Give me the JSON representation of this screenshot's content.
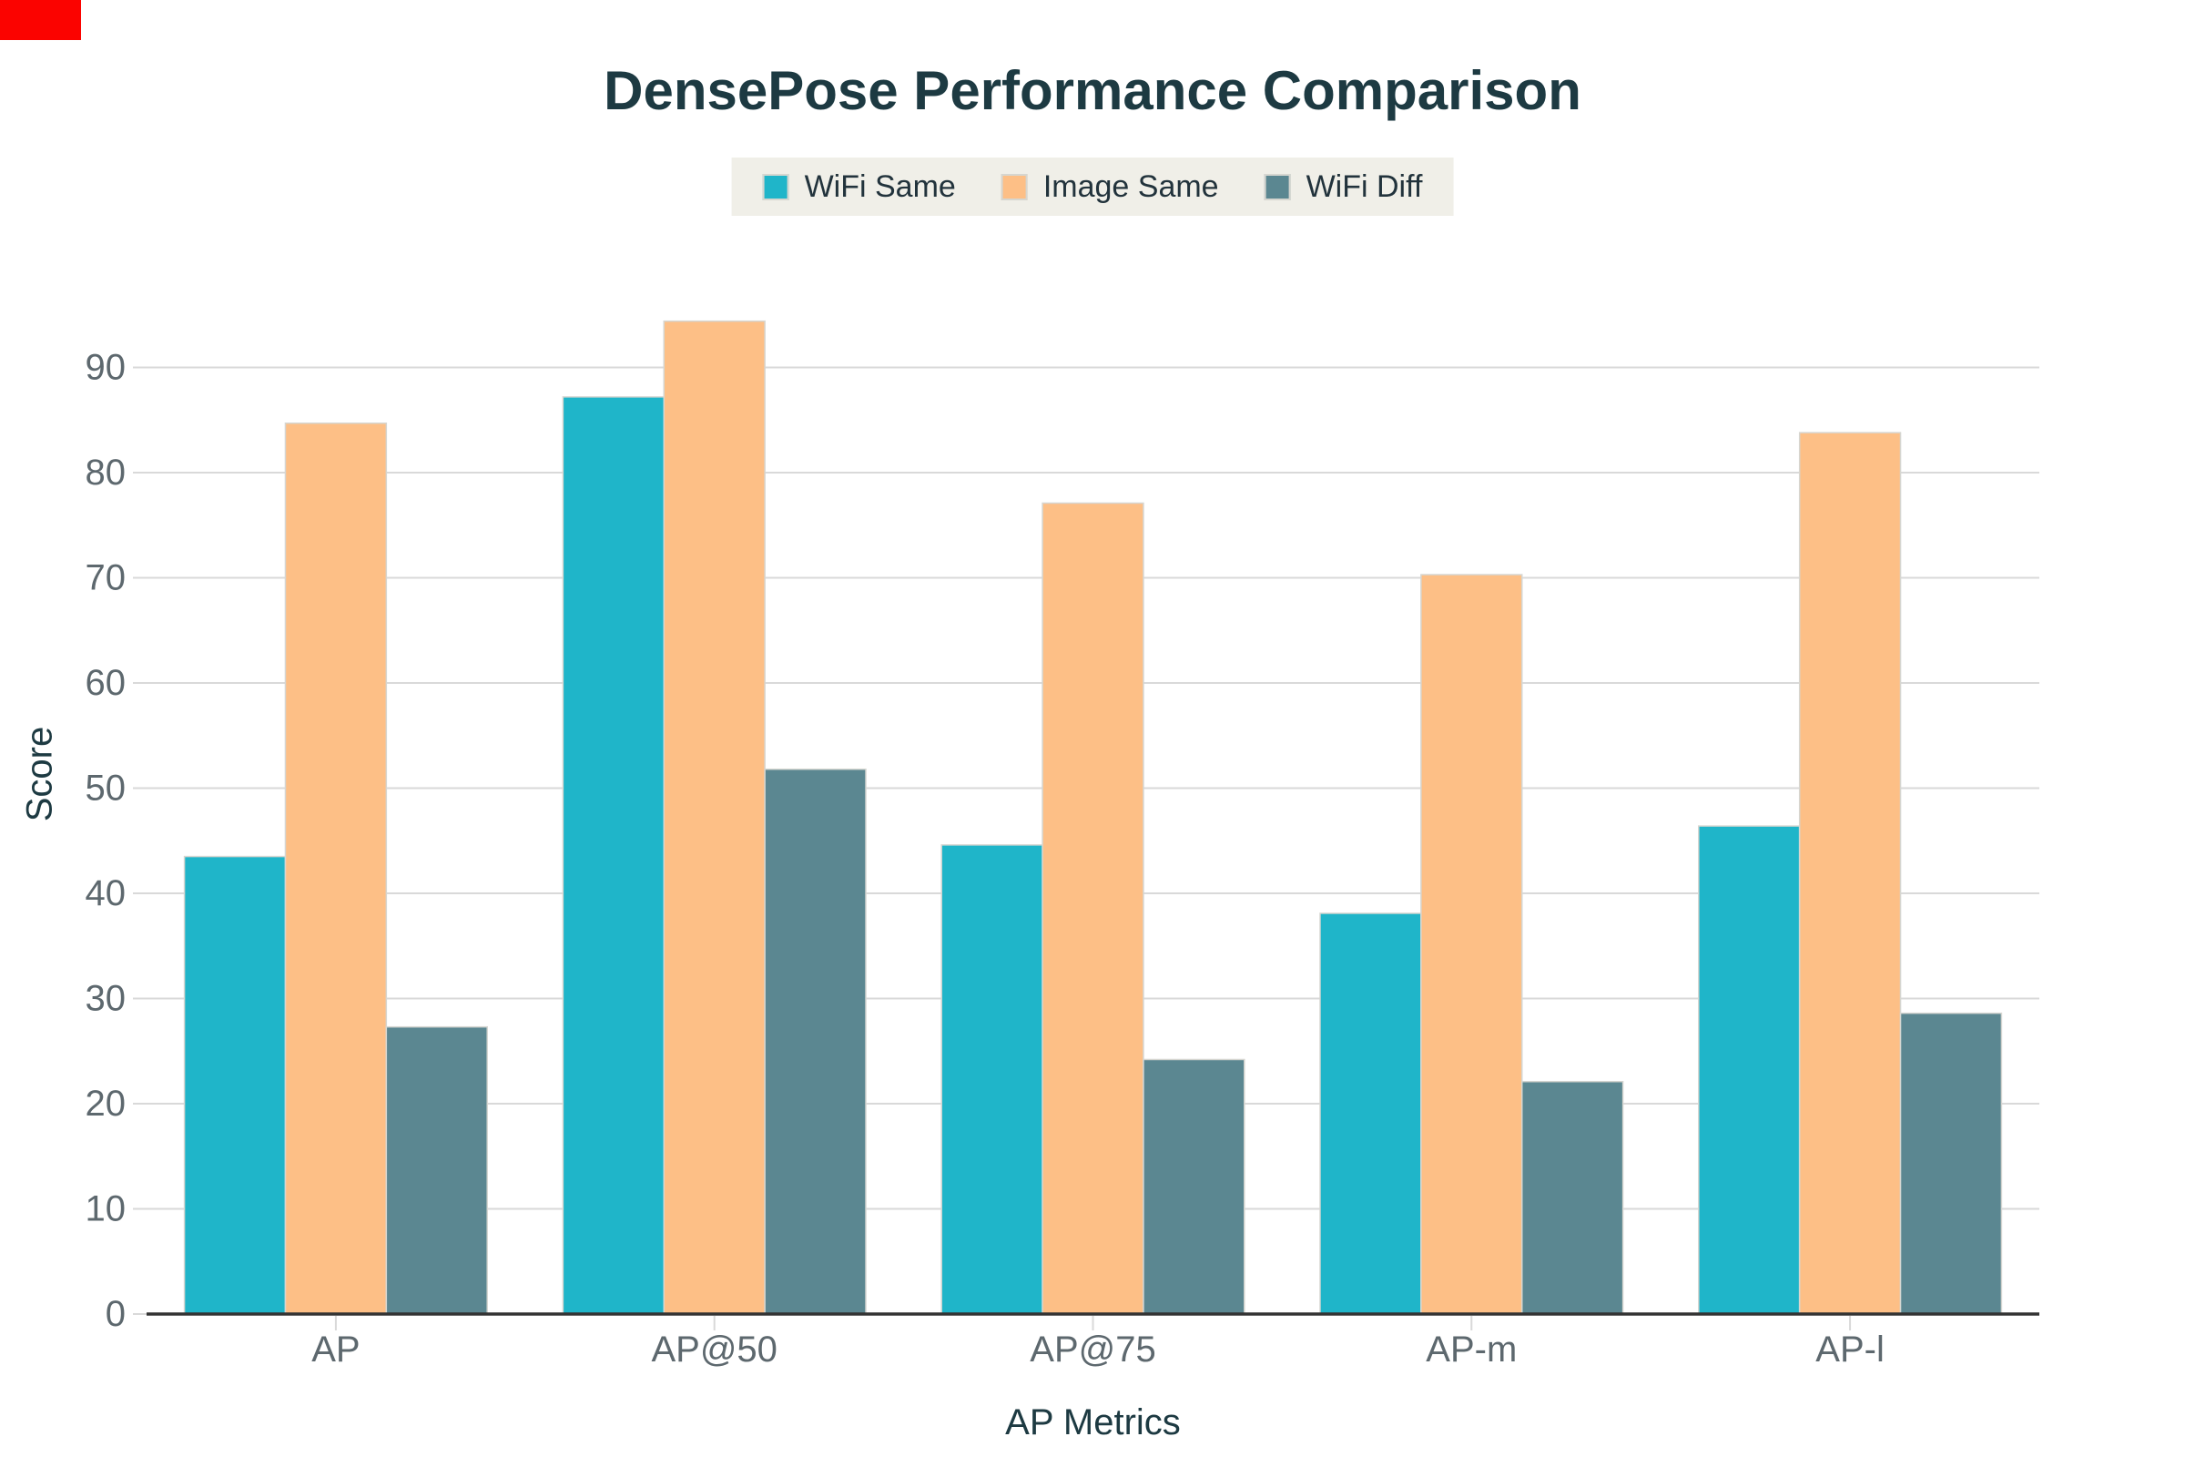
{
  "corner_marker": {
    "color": "#fb0300"
  },
  "theme": {
    "background": "#ffffff",
    "title_color": "#1d3a42",
    "axis_label_color": "#1d3a42",
    "tick_label_color": "#5d686e",
    "grid_color": "#d9d9d9",
    "axis_line_color": "#333333",
    "bar_stroke_color": "#d6d6d1",
    "legend_background": "#f0efe8",
    "legend_text_color": "#22333c"
  },
  "chart_data": {
    "type": "bar",
    "title": "DensePose Performance Comparison",
    "xlabel": "AP Metrics",
    "ylabel": "Score",
    "categories": [
      "AP",
      "AP@50",
      "AP@75",
      "AP-m",
      "AP-l"
    ],
    "series": [
      {
        "name": "WiFi Same",
        "color": "#1fb5c9",
        "values": [
          43.5,
          87.2,
          44.6,
          38.1,
          46.4
        ]
      },
      {
        "name": "Image Same",
        "color": "#fdbf86",
        "values": [
          84.7,
          94.4,
          77.1,
          70.3,
          83.8
        ]
      },
      {
        "name": "WiFi Diff",
        "color": "#5b8791",
        "values": [
          27.3,
          51.8,
          24.2,
          22.1,
          28.6
        ]
      }
    ],
    "y_ticks": [
      0,
      10,
      20,
      30,
      40,
      50,
      60,
      70,
      80,
      90
    ],
    "ylim": [
      0,
      95
    ],
    "grid": true,
    "legend_position": "top-center"
  }
}
